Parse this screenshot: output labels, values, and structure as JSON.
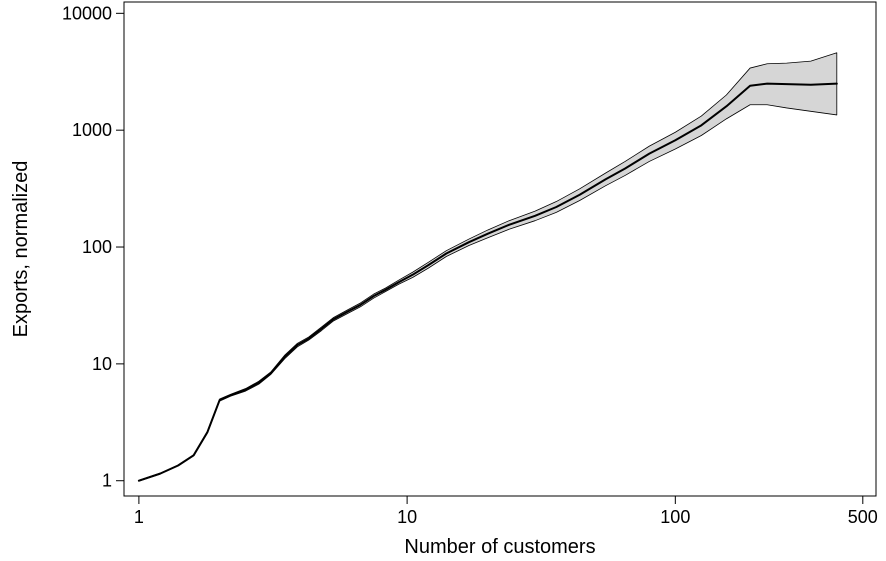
{
  "chart_data": {
    "type": "line",
    "title": "",
    "xlabel": "Number of customers",
    "ylabel": "Exports, normalized",
    "x_scale": "log",
    "y_scale": "log",
    "xlim": [
      0.88,
      560
    ],
    "ylim": [
      0.74,
      12500
    ],
    "x_ticks": [
      {
        "value": 1,
        "label": "1"
      },
      {
        "value": 10,
        "label": "10"
      },
      {
        "value": 100,
        "label": "100"
      },
      {
        "value": 500,
        "label": "500"
      }
    ],
    "y_ticks": [
      {
        "value": 1,
        "label": "1"
      },
      {
        "value": 10,
        "label": "10"
      },
      {
        "value": 100,
        "label": "100"
      },
      {
        "value": 1000,
        "label": "1000"
      },
      {
        "value": 10000,
        "label": "10000"
      }
    ],
    "grid": false,
    "legend": "none",
    "colors": {
      "line": "#000000",
      "band_fill": "#d6d6d6",
      "band_edge": "#000000"
    },
    "series": [
      {
        "x": [
          1,
          1.2,
          1.4,
          1.6,
          1.8,
          2,
          2.2,
          2.5,
          2.8,
          3.1,
          3.5,
          3.9,
          4.3,
          4.8,
          5.3,
          6.0,
          6.7,
          7.5,
          8.3,
          9.3,
          10.5,
          12,
          14,
          17,
          20,
          24,
          30,
          36,
          44,
          55,
          65,
          80,
          100,
          125,
          155,
          190,
          220,
          260,
          320,
          400
        ],
        "y": [
          1,
          1.15,
          1.35,
          1.65,
          2.6,
          4.9,
          5.4,
          6.0,
          6.9,
          8.3,
          11.5,
          14.5,
          16.5,
          20,
          24,
          28,
          32,
          38,
          43,
          50,
          58,
          70,
          88,
          110,
          130,
          155,
          185,
          220,
          280,
          380,
          470,
          630,
          820,
          1100,
          1600,
          2400,
          2500,
          2480,
          2450,
          2500
        ],
        "lower": [
          0.99,
          1.14,
          1.34,
          1.63,
          2.55,
          4.8,
          5.3,
          5.85,
          6.7,
          8.1,
          11.1,
          14.0,
          16.0,
          19.3,
          23.2,
          27,
          30.8,
          36.5,
          41.5,
          48,
          55,
          66,
          83,
          103,
          120,
          142,
          168,
          198,
          250,
          335,
          410,
          540,
          690,
          900,
          1250,
          1650,
          1650,
          1550,
          1450,
          1350
        ],
        "upper": [
          1.01,
          1.16,
          1.36,
          1.67,
          2.65,
          5.0,
          5.5,
          6.15,
          7.1,
          8.5,
          11.9,
          15.0,
          17.0,
          20.7,
          24.8,
          29,
          33.2,
          39.5,
          44.5,
          52,
          61,
          74,
          93,
          117,
          140,
          168,
          203,
          245,
          315,
          430,
          540,
          730,
          960,
          1320,
          2000,
          3400,
          3700,
          3750,
          3900,
          4600
        ]
      }
    ]
  }
}
